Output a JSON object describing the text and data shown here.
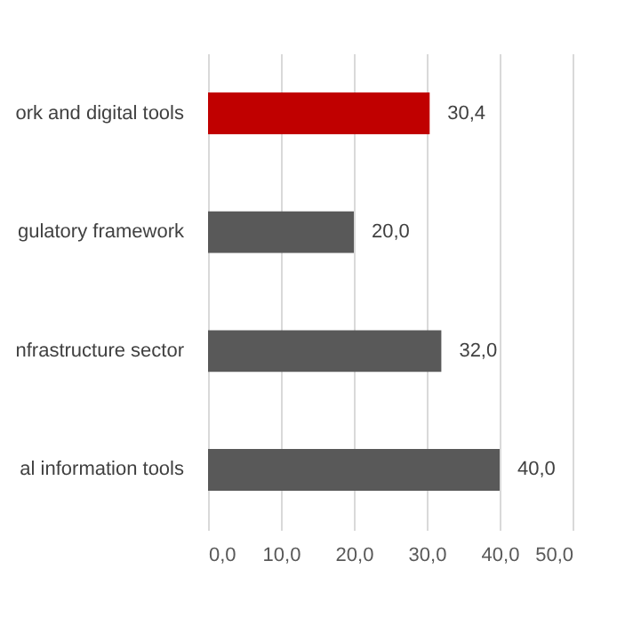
{
  "chart_data": {
    "type": "bar",
    "orientation": "horizontal",
    "categories": [
      "ork and digital tools",
      "gulatory framework",
      "nfrastructure sector",
      "al information tools"
    ],
    "values": [
      30.4,
      20.0,
      32.0,
      40.0
    ],
    "colors": [
      "#c00000",
      "#595959",
      "#595959",
      "#595959"
    ],
    "value_labels": [
      "30,4",
      "20,0",
      "32,0",
      "40,0"
    ],
    "xlim": [
      0,
      50
    ],
    "xticks": [
      {
        "value": 0,
        "label": "0,0"
      },
      {
        "value": 10,
        "label": "10,0"
      },
      {
        "value": 20,
        "label": "20,0"
      },
      {
        "value": 30,
        "label": "30,0"
      },
      {
        "value": 40,
        "label": "40,0"
      },
      {
        "value": 50,
        "label": "50,0"
      }
    ],
    "grid": "x"
  }
}
